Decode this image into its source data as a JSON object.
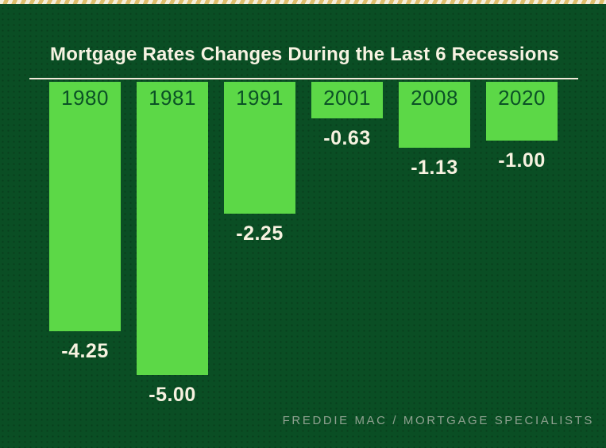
{
  "title": "Mortgage Rates Changes During the Last 6 Recessions",
  "source_credit": "FREDDIE MAC / MORTGAGE SPECIALISTS",
  "colors": {
    "background": "#0a4e24",
    "bar": "#5cd847",
    "text_cream": "#f7f2e0",
    "year_label": "#0b5126",
    "ribbon_cream": "#f5efdb",
    "ribbon_gold": "#debf6e",
    "source_text": "#8fa190",
    "baseline": "#f0ead8"
  },
  "chart_data": {
    "type": "bar",
    "title": "Mortgage Rates Changes During the Last 6 Recessions",
    "categories": [
      "1980",
      "1981",
      "1991",
      "2001",
      "2008",
      "2020"
    ],
    "values": [
      -4.25,
      -5.0,
      -2.25,
      -0.63,
      -1.13,
      -1.0
    ],
    "value_labels": [
      "-4.25",
      "-5.00",
      "-2.25",
      "-0.63",
      "-1.13",
      "-1.00"
    ],
    "xlabel": "",
    "ylabel": "",
    "ylim": [
      -5.5,
      0
    ],
    "grid": false,
    "legend": false,
    "orientation": "vertical-negative",
    "baseline_at_top": true,
    "annotation": "Years shown inside bar tops; rate change values shown below each bar"
  }
}
